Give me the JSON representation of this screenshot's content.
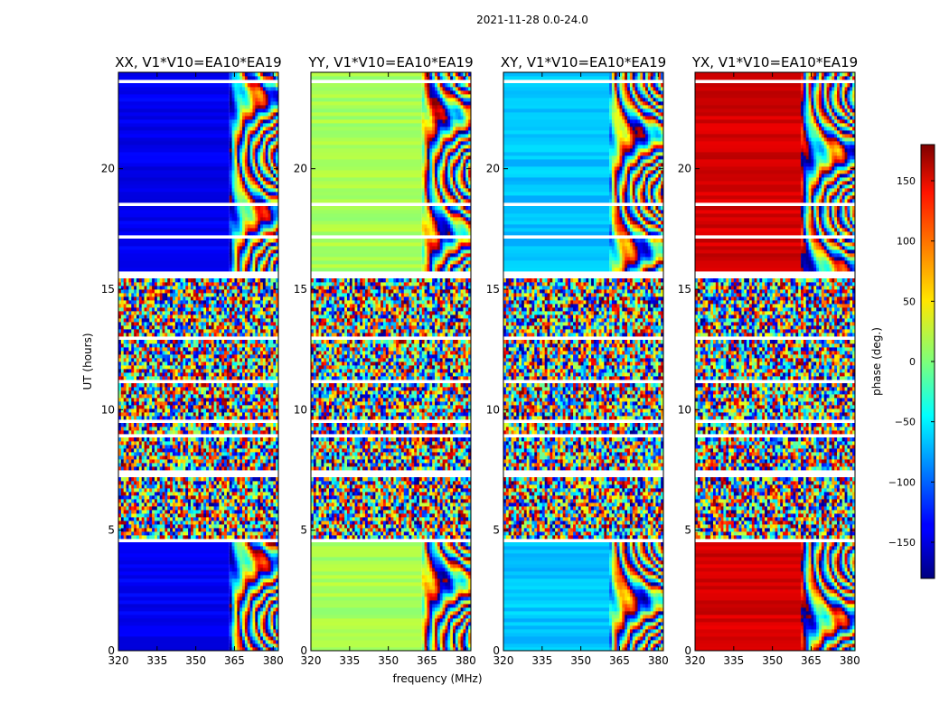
{
  "figure": {
    "suptitle": "2021-11-28 0.0-24.0",
    "xlabel": "frequency (MHz)",
    "ylabel": "UT (hours)"
  },
  "chart_data": {
    "type": "heatmap",
    "title": "2021-11-28 0.0-24.0",
    "xlabel": "frequency (MHz)",
    "ylabel": "UT (hours)",
    "xlim": [
      320,
      382
    ],
    "ylim": [
      0,
      24
    ],
    "xticks": [
      320,
      335,
      350,
      365,
      380
    ],
    "yticks": [
      0,
      5,
      10,
      15,
      20
    ],
    "panels": [
      {
        "title": "XX, V1*V10=EA10*EA19",
        "base_phase": -140,
        "cal_freq_start": 363
      },
      {
        "title": "YY, V1*V10=EA10*EA19",
        "base_phase": 15,
        "cal_freq_start": 363
      },
      {
        "title": "XY, V1*V10=EA10*EA19",
        "base_phase": -65,
        "cal_freq_start": 361
      },
      {
        "title": "YX, V1*V10=EA10*EA19",
        "base_phase": 150,
        "cal_freq_start": 361
      }
    ],
    "noisy_time_ranges": [
      [
        4.6,
        7.4
      ],
      [
        7.4,
        15.6
      ]
    ],
    "colorbar": {
      "label": "phase (deg.)",
      "range": [
        -180,
        180
      ],
      "ticks": [
        150,
        100,
        50,
        0,
        -50,
        -100,
        -150
      ],
      "tick_labels": [
        "150",
        "100",
        "50",
        "0",
        "−50",
        "−100",
        "−150"
      ],
      "colormap": "jet"
    }
  }
}
